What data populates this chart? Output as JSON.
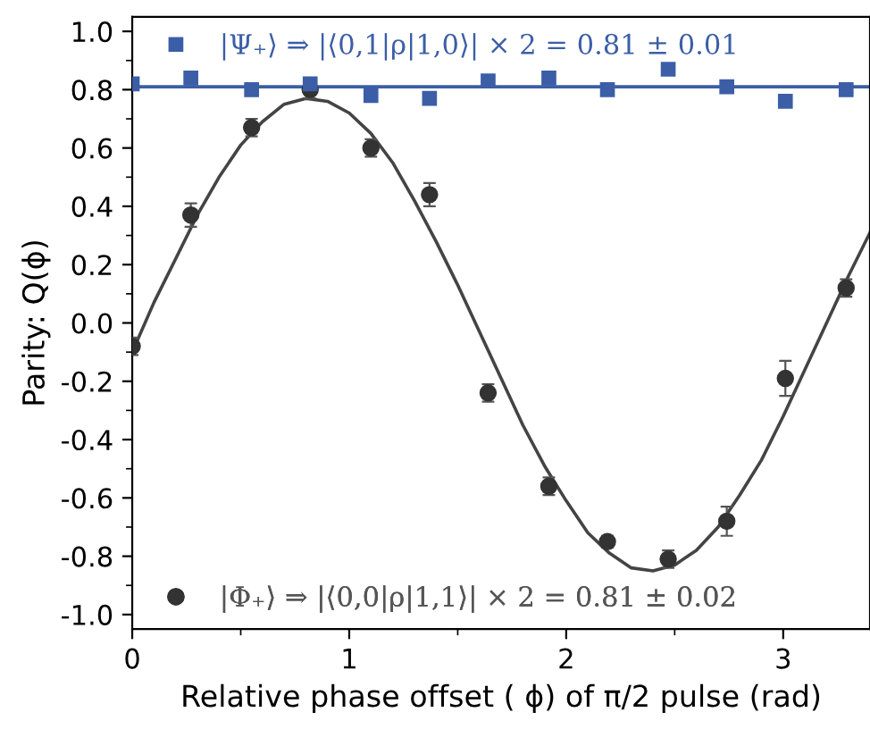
{
  "chart_data": {
    "type": "scatter",
    "xlabel": "Relative phase offset ( ϕ) of π/2 pulse (rad)",
    "ylabel": "Parity: Q(ϕ)",
    "xlim": [
      0,
      3.4
    ],
    "ylim": [
      -1.05,
      1.05
    ],
    "xticks": [
      0,
      1,
      2,
      3
    ],
    "yticks": [
      {
        "value": -1.0,
        "label": "-1.0"
      },
      {
        "value": -0.8,
        "label": "-0.8"
      },
      {
        "value": -0.6,
        "label": "-0.6"
      },
      {
        "value": -0.4,
        "label": "-0.4"
      },
      {
        "value": -0.2,
        "label": "-0.2"
      },
      {
        "value": 0.0,
        "label": "0.0"
      },
      {
        "value": 0.2,
        "label": "0.2"
      },
      {
        "value": 0.4,
        "label": "0.4"
      },
      {
        "value": 0.6,
        "label": "0.6"
      },
      {
        "value": 0.8,
        "label": "0.8"
      },
      {
        "value": 1.0,
        "label": "1.0"
      }
    ],
    "grid": false,
    "legend": "left",
    "series": [
      {
        "name": "|Ψ₊⟩ ⇒ |⟨0,1|ρ|1,0⟩| × 2 = 0.81 ± 0.01",
        "marker": "square",
        "color": "#3b5ea6",
        "x": [
          0,
          0.27,
          0.55,
          0.82,
          1.1,
          1.37,
          1.64,
          1.92,
          2.19,
          2.47,
          2.74,
          3.01,
          3.29
        ],
        "values": [
          0.82,
          0.84,
          0.8,
          0.82,
          0.78,
          0.77,
          0.83,
          0.84,
          0.8,
          0.87,
          0.81,
          0.76,
          0.8
        ]
      },
      {
        "name": "|Φ₊⟩ ⇒ |⟨0,0|ρ|1,1⟩| × 2 = 0.81 ± 0.02",
        "marker": "circle",
        "color": "#333333",
        "x": [
          0,
          0.27,
          0.55,
          0.82,
          1.1,
          1.37,
          1.64,
          1.92,
          2.19,
          2.47,
          2.74,
          3.01,
          3.29
        ],
        "values": [
          -0.08,
          0.37,
          0.67,
          0.8,
          0.6,
          0.44,
          -0.24,
          -0.56,
          -0.75,
          -0.81,
          -0.68,
          -0.19,
          0.12
        ],
        "errors": [
          0.03,
          0.04,
          0.03,
          0.03,
          0.03,
          0.04,
          0.03,
          0.03,
          0.02,
          0.03,
          0.05,
          0.06,
          0.03
        ]
      },
      {
        "type": "line",
        "color": "#3b5ea6",
        "x": [
          0,
          3.4
        ],
        "values": [
          0.81,
          0.81
        ]
      },
      {
        "type": "line",
        "color": "#444444",
        "x": [
          0,
          0.1,
          0.2,
          0.3,
          0.4,
          0.5,
          0.6,
          0.7,
          0.8,
          0.9,
          1.0,
          1.1,
          1.2,
          1.3,
          1.4,
          1.5,
          1.6,
          1.7,
          1.8,
          1.9,
          2.0,
          2.1,
          2.2,
          2.3,
          2.4,
          2.5,
          2.6,
          2.7,
          2.8,
          2.9,
          3.0,
          3.1,
          3.2,
          3.3,
          3.4
        ],
        "values": [
          -0.1,
          0.07,
          0.22,
          0.37,
          0.5,
          0.61,
          0.69,
          0.75,
          0.77,
          0.76,
          0.72,
          0.65,
          0.55,
          0.42,
          0.28,
          0.13,
          -0.03,
          -0.19,
          -0.35,
          -0.49,
          -0.61,
          -0.72,
          -0.79,
          -0.84,
          -0.85,
          -0.83,
          -0.78,
          -0.7,
          -0.59,
          -0.47,
          -0.32,
          -0.16,
          0.0,
          0.16,
          0.31
        ]
      }
    ]
  }
}
